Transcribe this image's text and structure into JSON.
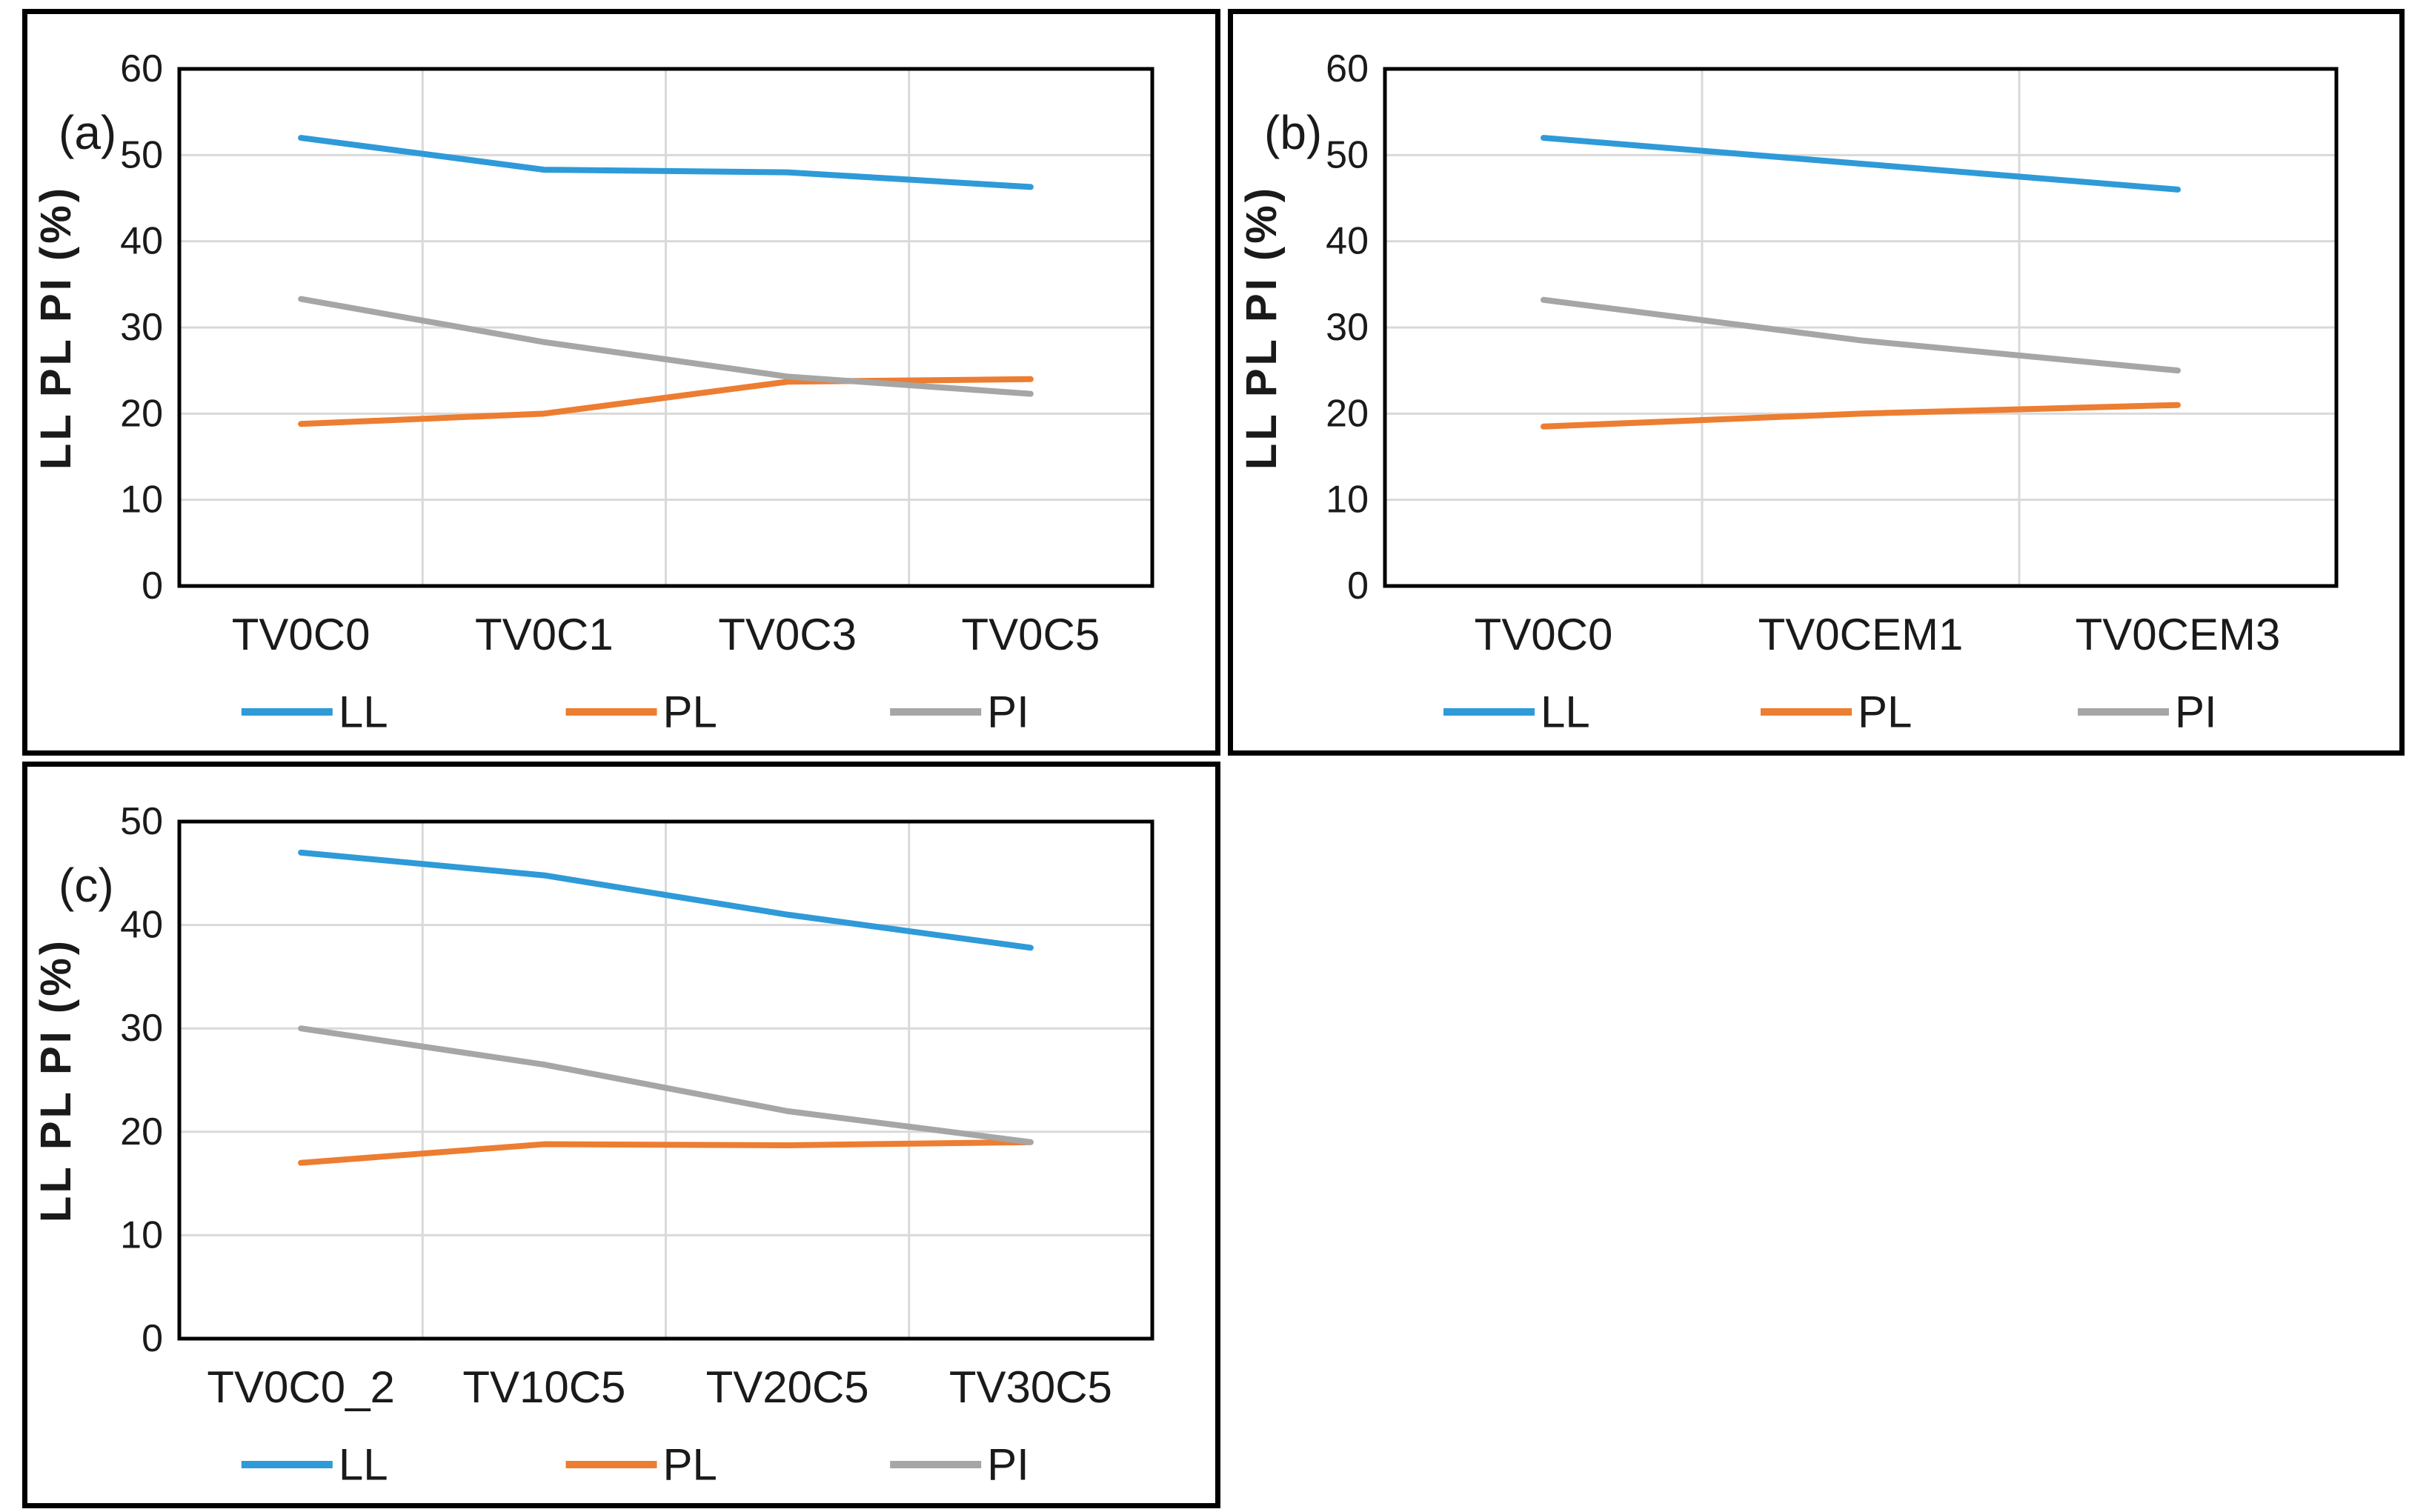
{
  "figure": {
    "background_color": "#ffffff",
    "description_visible_text_only": true
  },
  "colors": {
    "series_blue": "#2E9AD8",
    "series_orange": "#ED7D31",
    "series_gray": "#A6A6A6",
    "gridline": "#D9D9D9",
    "axis_border": "#000000",
    "text": "#1a1a1a"
  },
  "chart_data": [
    {
      "id": "a",
      "type": "line",
      "panel_label": "(a)",
      "ylabel": "LL PL PI (%)",
      "xlabel": "",
      "ylim": [
        0,
        60
      ],
      "y_ticks": [
        0,
        10,
        20,
        30,
        40,
        50,
        60
      ],
      "grid": true,
      "legend_position": "bottom",
      "categories": [
        "TV0C0",
        "TV0C1",
        "TV0C3",
        "TV0C5"
      ],
      "series": [
        {
          "name": "LL",
          "color": "#2E9AD8",
          "values": [
            52.0,
            48.3,
            48.0,
            46.3
          ]
        },
        {
          "name": "PL",
          "color": "#ED7D31",
          "values": [
            18.8,
            20.0,
            23.7,
            24.0
          ]
        },
        {
          "name": "PI",
          "color": "#A6A6A6",
          "values": [
            33.3,
            28.3,
            24.3,
            22.3
          ]
        }
      ]
    },
    {
      "id": "b",
      "type": "line",
      "panel_label": "(b)",
      "ylabel": "LL PL PI (%)",
      "xlabel": "",
      "ylim": [
        0,
        60
      ],
      "y_ticks": [
        0,
        10,
        20,
        30,
        40,
        50,
        60
      ],
      "grid": true,
      "legend_position": "bottom",
      "categories": [
        "TV0C0",
        "TV0CEM1",
        "TV0CEM3"
      ],
      "series": [
        {
          "name": "LL",
          "color": "#2E9AD8",
          "values": [
            52.0,
            49.0,
            46.0
          ]
        },
        {
          "name": "PL",
          "color": "#ED7D31",
          "values": [
            18.5,
            20.0,
            21.0
          ]
        },
        {
          "name": "PI",
          "color": "#A6A6A6",
          "values": [
            33.2,
            28.5,
            25.0
          ]
        }
      ]
    },
    {
      "id": "c",
      "type": "line",
      "panel_label": "(c)",
      "ylabel": "LL PL PI (%)",
      "xlabel": "",
      "ylim": [
        0,
        50
      ],
      "y_ticks": [
        0,
        10,
        20,
        30,
        40,
        50
      ],
      "grid": true,
      "legend_position": "bottom",
      "categories": [
        "TV0C0_2",
        "TV10C5",
        "TV20C5",
        "TV30C5"
      ],
      "series": [
        {
          "name": "LL",
          "color": "#2E9AD8",
          "values": [
            47.0,
            44.8,
            41.0,
            37.8
          ]
        },
        {
          "name": "PL",
          "color": "#ED7D31",
          "values": [
            17.0,
            18.8,
            18.7,
            19.0
          ]
        },
        {
          "name": "PI",
          "color": "#A6A6A6",
          "values": [
            30.0,
            26.5,
            22.0,
            19.0
          ]
        }
      ]
    }
  ]
}
